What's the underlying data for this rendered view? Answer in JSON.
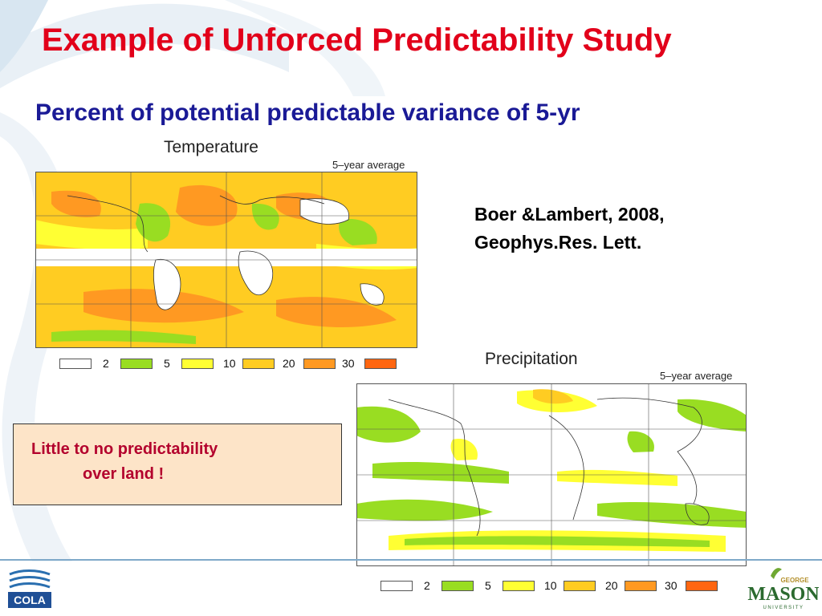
{
  "slide": {
    "title": "Example of Unforced Predictability Study",
    "subtitle": "Percent of potential predictable variance of 5-yr",
    "citation": [
      "Boer &Lambert, 2008,",
      "Geophys.Res. Lett."
    ],
    "note": [
      "Little to no predictability",
      "over land !"
    ]
  },
  "panels": {
    "temperature": {
      "title": "Temperature",
      "average_label": "5–year average"
    },
    "precipitation": {
      "title": "Precipitation",
      "average_label": "5–year average"
    }
  },
  "legend": {
    "labels": [
      "2",
      "5",
      "10",
      "20",
      "30"
    ],
    "colors": [
      "#ffffff",
      "#99dd22",
      "#ffff33",
      "#ffcc22",
      "#ff9922",
      "#ff6611"
    ]
  },
  "logos": {
    "cola": "COLA",
    "gmu_small": "GEORGE",
    "gmu_main": "MASON",
    "gmu_sub": "UNIVERSITY"
  }
}
